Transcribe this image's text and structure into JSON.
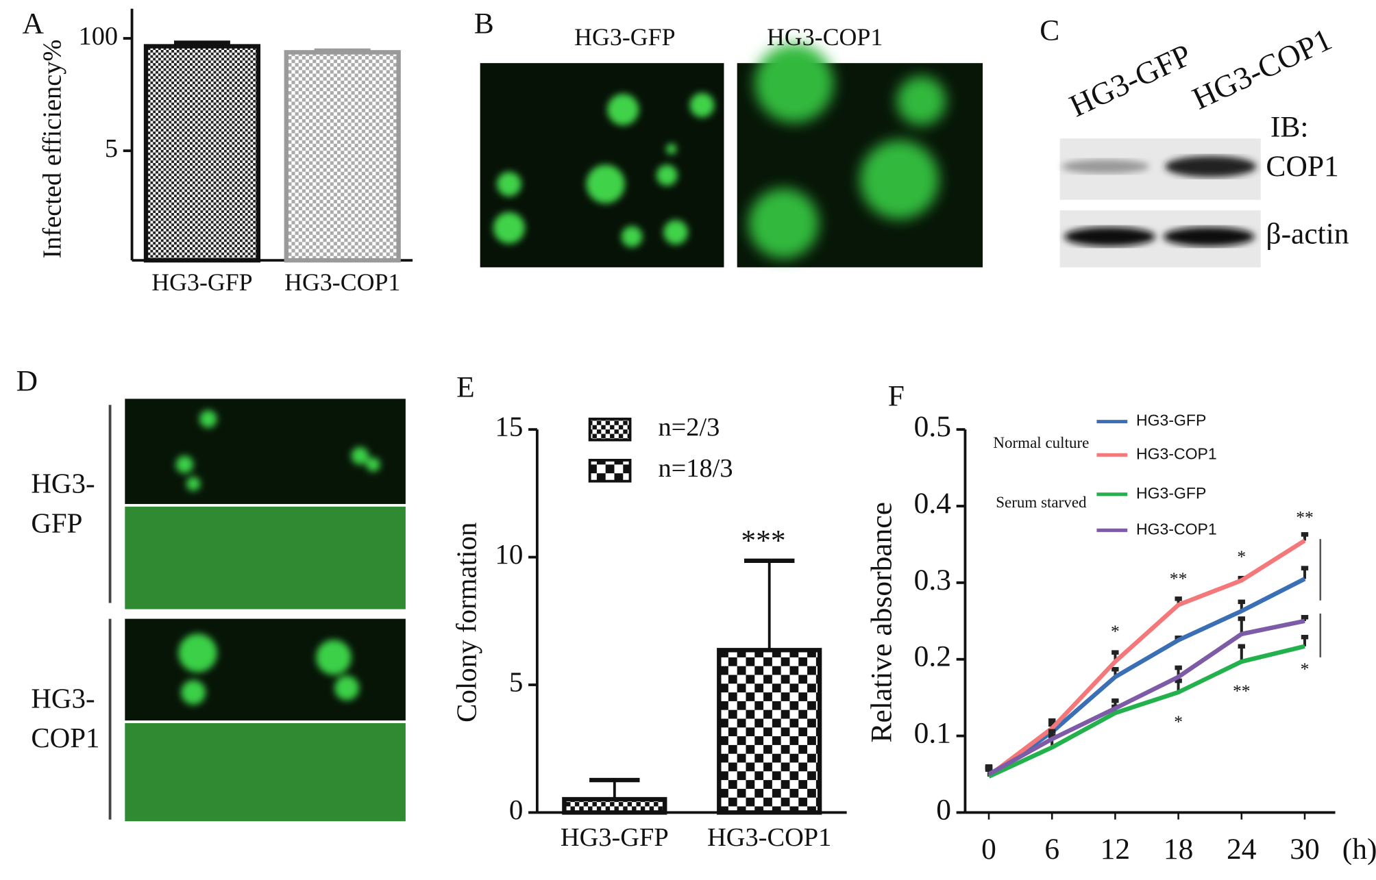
{
  "chart_data": [
    {
      "type": "bar",
      "ylabel": "Infected efficiency%",
      "categories": [
        "HG3-GFP",
        "HG3-COP1"
      ],
      "values": [
        81,
        69
      ],
      "errors": [
        8,
        3
      ],
      "colors": [
        "#111111",
        "#9a9a9a"
      ],
      "log": true,
      "ylim": [
        0.27,
        220
      ],
      "yticks": [
        100,
        5
      ]
    },
    {
      "type": "bar",
      "ylabel": "Colony formation",
      "categories": [
        "HG3-GFP",
        "HG3-COP1"
      ],
      "series": [
        {
          "name": "n=2/3",
          "color": "#111111",
          "values": [
            0.52,
            null
          ],
          "errors": [
            0.75,
            null
          ]
        },
        {
          "name": "n=18/3",
          "color": "#111111",
          "values": [
            null,
            6.36
          ],
          "errors": [
            null,
            3.5
          ]
        }
      ],
      "annotations": [
        "***"
      ],
      "ylim": [
        0,
        15
      ],
      "yticks": [
        0,
        5,
        10,
        15
      ]
    },
    {
      "type": "line",
      "ylabel": "Relative absorbance",
      "xlabel": "(h)",
      "x": [
        0,
        6,
        12,
        18,
        24,
        30
      ],
      "xlim": [
        -2.25,
        32.9
      ],
      "xticks": [
        0,
        6,
        12,
        18,
        24,
        30
      ],
      "ylim": [
        0,
        0.5
      ],
      "yticks": [
        0,
        0.1,
        0.2,
        0.3,
        0.4,
        0.5
      ],
      "legend_groups": [
        "Normal culture",
        "Serum starved"
      ],
      "series": [
        {
          "name": "HG3-GFP",
          "color": "#3a6fb5",
          "values": [
            0.048,
            0.105,
            0.177,
            0.225,
            0.263,
            0.305
          ],
          "errors": [
            0.01,
            0.01,
            0.01,
            0.003,
            0.012,
            0.014
          ]
        },
        {
          "name": "HG3-COP1",
          "color": "#f4777a",
          "values": [
            0.048,
            0.11,
            0.197,
            0.271,
            0.303,
            0.355
          ],
          "errors": [
            0.008,
            0.01,
            0.012,
            0.008,
            0.003,
            0.008
          ]
        },
        {
          "name": "HG3-GFP",
          "color": "#22b14c",
          "values": [
            0.047,
            0.085,
            0.13,
            0.157,
            0.197,
            0.217
          ],
          "errors": [
            0.012,
            0.015,
            0.008,
            0.015,
            0.02,
            0.012
          ]
        },
        {
          "name": "HG3-COP1",
          "color": "#7d5ba6",
          "values": [
            0.05,
            0.096,
            0.136,
            0.177,
            0.233,
            0.25
          ],
          "errors": [
            0.01,
            0.01,
            0.01,
            0.012,
            0.02,
            0.005
          ]
        }
      ],
      "annotations": [
        "*",
        "**",
        "*",
        "**",
        "*",
        "**",
        "*"
      ]
    }
  ],
  "panels": {
    "letters": [
      "A",
      "B",
      "C",
      "D",
      "E",
      "F"
    ],
    "B": {
      "labels": [
        "HG3-GFP",
        "HG3-COP1"
      ]
    },
    "C": {
      "lanes": [
        "HG3-GFP",
        "HG3-COP1"
      ],
      "ib": "IB:",
      "bands": [
        "COP1",
        "β-actin"
      ]
    },
    "D": {
      "rows": [
        [
          "HG3-",
          "GFP"
        ],
        [
          "HG3-",
          "COP1"
        ]
      ]
    }
  }
}
